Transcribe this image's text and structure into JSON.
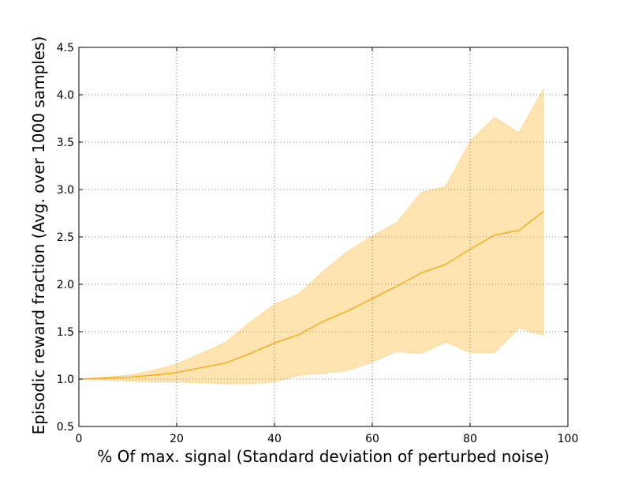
{
  "chart_data": {
    "type": "line",
    "title": "",
    "xlabel": "% Of max. signal (Standard deviation of perturbed noise)",
    "ylabel": "Episodic reward fraction (Avg. over 1000 samples)",
    "xlim": [
      0,
      100
    ],
    "ylim": [
      0.5,
      4.5
    ],
    "x_ticks": [
      0,
      20,
      40,
      60,
      80,
      100
    ],
    "y_ticks": [
      0.5,
      1.0,
      1.5,
      2.0,
      2.5,
      3.0,
      3.5,
      4.0,
      4.5
    ],
    "x_tick_labels": [
      "0",
      "20",
      "40",
      "60",
      "80",
      "100"
    ],
    "y_tick_labels": [
      "0.5",
      "1.0",
      "1.5",
      "2.0",
      "2.5",
      "3.0",
      "3.5",
      "4.0",
      "4.5"
    ],
    "grid": true,
    "grid_style": "dotted",
    "legend": "none",
    "colors": {
      "line": "#ffa500",
      "band": "#ffa500"
    },
    "series": [
      {
        "x": [
          0,
          5,
          10,
          15,
          20,
          25,
          30,
          35,
          40,
          45,
          50,
          55,
          60,
          65,
          70,
          75,
          80,
          85,
          90,
          95
        ],
        "mean": [
          1.0,
          1.01,
          1.02,
          1.04,
          1.07,
          1.12,
          1.17,
          1.27,
          1.38,
          1.47,
          1.61,
          1.72,
          1.85,
          1.98,
          2.12,
          2.21,
          2.37,
          2.52,
          2.57,
          2.77
        ],
        "upper": [
          1.0,
          1.02,
          1.04,
          1.09,
          1.16,
          1.27,
          1.39,
          1.6,
          1.79,
          1.9,
          2.14,
          2.35,
          2.51,
          2.65,
          2.97,
          3.03,
          3.51,
          3.76,
          3.6,
          4.06
        ],
        "lower": [
          1.0,
          0.99,
          0.98,
          0.97,
          0.97,
          0.96,
          0.95,
          0.95,
          0.97,
          1.04,
          1.06,
          1.09,
          1.18,
          1.29,
          1.27,
          1.39,
          1.28,
          1.28,
          1.54,
          1.46
        ]
      }
    ]
  }
}
